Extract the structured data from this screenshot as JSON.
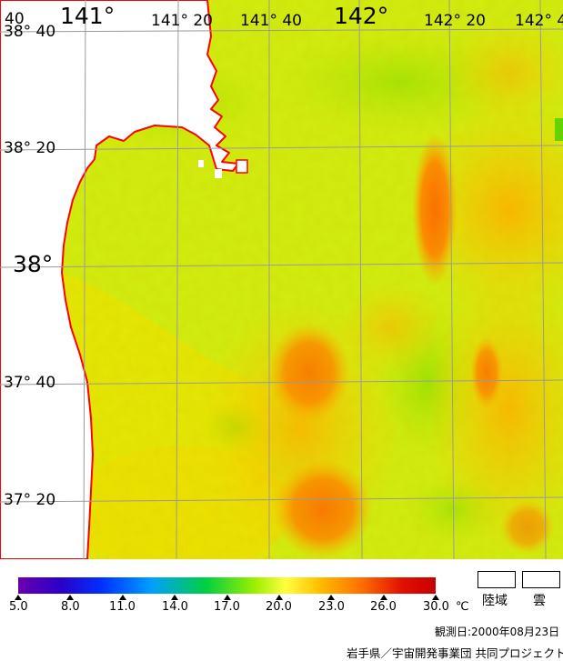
{
  "map": {
    "lon_labels": [
      "141°",
      "141° 20",
      "141° 40",
      "142°",
      "142° 20",
      "142° 4"
    ],
    "lat_labels": [
      "38° 40",
      "38° 20",
      "38°",
      "37° 40",
      "37° 20"
    ],
    "lat_label_partial": "40",
    "land_color": "#ffffff",
    "coast_color": "#ff0000",
    "grid_color": "#9a9a9a"
  },
  "legend": {
    "ticks": [
      "5.0",
      "8.0",
      "11.0",
      "14.0",
      "17.0",
      "20.0",
      "23.0",
      "26.0",
      "30.0"
    ],
    "unit": "℃",
    "land_label": "陸域",
    "cloud_label": "雲"
  },
  "observation_date": "観測日:2000年08月23日",
  "credit": "岩手県／宇宙開発事業団  共同プロジェクト"
}
